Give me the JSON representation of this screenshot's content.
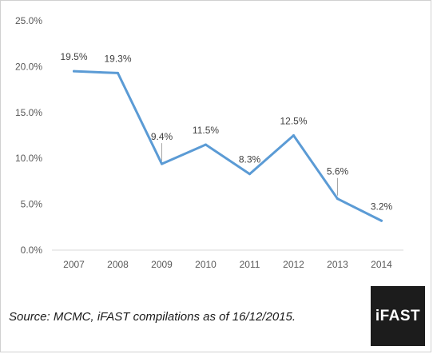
{
  "chart_data": {
    "type": "line",
    "title": "",
    "xlabel": "",
    "ylabel": "",
    "categories": [
      "2007",
      "2008",
      "2009",
      "2010",
      "2011",
      "2012",
      "2013",
      "2014"
    ],
    "series": [
      {
        "values": [
          19.5,
          19.3,
          9.4,
          11.5,
          8.3,
          12.5,
          5.6,
          3.2
        ],
        "labels": [
          "19.5%",
          "19.3%",
          "9.4%",
          "11.5%",
          "8.3%",
          "12.5%",
          "5.6%",
          "3.2%"
        ],
        "color": "#5b9bd5"
      }
    ],
    "y_ticks": [
      0,
      5,
      10,
      15,
      20,
      25
    ],
    "y_tick_labels": [
      "0.0%",
      "5.0%",
      "10.0%",
      "15.0%",
      "20.0%",
      "25.0%"
    ],
    "ylim": [
      0,
      25
    ],
    "grid": false,
    "legend": "none"
  },
  "footer": {
    "source": "Source: MCMC, iFAST compilations as of 16/12/2015."
  },
  "logo": {
    "text": "iFAST"
  }
}
